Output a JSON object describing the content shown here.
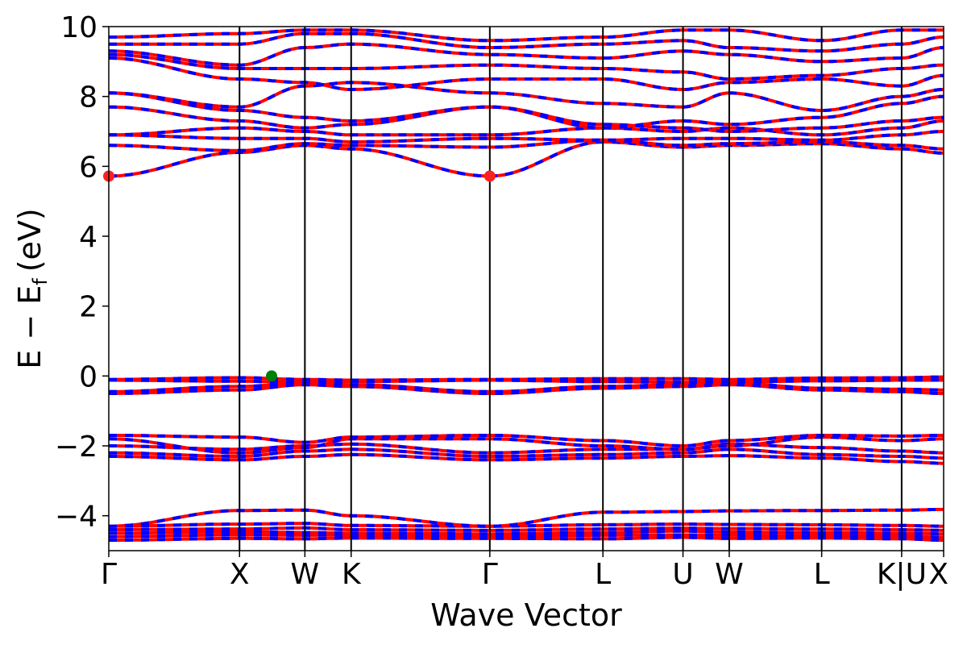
{
  "chart_data": {
    "type": "line",
    "title": "",
    "xlabel": "Wave Vector",
    "ylabel": "E − E_f (eV)",
    "ylabel_parts": {
      "main": "E − E",
      "sub": "f",
      "unit": "(eV)"
    },
    "ylim": [
      -5,
      10
    ],
    "xlim": [
      0,
      1
    ],
    "grid": false,
    "y_ticks": [
      -4,
      -2,
      0,
      2,
      4,
      6,
      8,
      10
    ],
    "y_tick_labels": [
      "−4",
      "−2",
      "0",
      "2",
      "4",
      "6",
      "8",
      "10"
    ],
    "kpoints": [
      {
        "label": "Γ",
        "x": 0.0
      },
      {
        "label": "X",
        "x": 0.1566
      },
      {
        "label": "W",
        "x": 0.2349
      },
      {
        "label": "K",
        "x": 0.2903
      },
      {
        "label": "Γ",
        "x": 0.4564
      },
      {
        "label": "L",
        "x": 0.5919
      },
      {
        "label": "U",
        "x": 0.6878
      },
      {
        "label": "W",
        "x": 0.7432
      },
      {
        "label": "L",
        "x": 0.8539
      },
      {
        "label": "K|U",
        "x": 0.9497
      },
      {
        "label": "X",
        "x": 1.0
      }
    ],
    "series_colors": {
      "spin_up": "#ff0000",
      "spin_down": "#0000ff"
    },
    "markers": [
      {
        "name": "cbm",
        "x": 0.0,
        "y": 5.72,
        "color": "#ff2020"
      },
      {
        "name": "cbm",
        "x": 0.4564,
        "y": 5.72,
        "color": "#ff2020"
      },
      {
        "name": "vbm",
        "x": 0.195,
        "y": 0.0,
        "color": "#008000"
      }
    ],
    "bands": [
      {
        "knots": [
          -4.7,
          -4.65,
          -4.66,
          -4.64,
          -4.65,
          -4.66,
          -4.62,
          -4.65,
          -4.64,
          -4.66,
          -4.7
        ]
      },
      {
        "knots": [
          -4.6,
          -4.55,
          -4.56,
          -4.55,
          -4.58,
          -4.56,
          -4.55,
          -4.56,
          -4.57,
          -4.58,
          -4.62
        ]
      },
      {
        "knots": [
          -4.5,
          -4.46,
          -4.48,
          -4.5,
          -4.52,
          -4.48,
          -4.44,
          -4.47,
          -4.48,
          -4.5,
          -4.52
        ]
      },
      {
        "knots": [
          -4.4,
          -4.38,
          -4.35,
          -4.4,
          -4.42,
          -4.38,
          -4.36,
          -4.37,
          -4.38,
          -4.4,
          -4.42
        ]
      },
      {
        "knots": [
          -4.3,
          -4.24,
          -4.22,
          -4.28,
          -4.3,
          -4.26,
          -4.24,
          -4.25,
          -4.26,
          -4.28,
          -4.3
        ]
      },
      {
        "knots": [
          -4.3,
          -3.85,
          -3.84,
          -4.0,
          -4.3,
          -3.9,
          -3.88,
          -3.86,
          -3.85,
          -3.84,
          -3.82
        ]
      },
      {
        "knots": [
          -2.3,
          -2.4,
          -2.3,
          -2.25,
          -2.4,
          -2.35,
          -2.3,
          -2.28,
          -2.35,
          -2.45,
          -2.5
        ]
      },
      {
        "knots": [
          -2.2,
          -2.3,
          -2.15,
          -2.1,
          -2.3,
          -2.25,
          -2.2,
          -2.1,
          -2.25,
          -2.3,
          -2.35
        ]
      },
      {
        "knots": [
          -2.0,
          -2.1,
          -2.0,
          -1.95,
          -2.2,
          -2.1,
          -2.1,
          -1.95,
          -2.05,
          -2.15,
          -2.2
        ]
      },
      {
        "knots": [
          -1.8,
          -2.2,
          -2.05,
          -1.8,
          -1.8,
          -2.0,
          -2.1,
          -2.0,
          -1.75,
          -1.85,
          -1.8
        ]
      },
      {
        "knots": [
          -1.7,
          -1.75,
          -1.9,
          -1.75,
          -1.7,
          -1.85,
          -2.0,
          -1.85,
          -1.7,
          -1.72,
          -1.7
        ]
      },
      {
        "knots": [
          -0.5,
          -0.4,
          -0.25,
          -0.3,
          -0.5,
          -0.35,
          -0.3,
          -0.25,
          -0.4,
          -0.45,
          -0.5
        ]
      },
      {
        "knots": [
          -0.45,
          -0.3,
          -0.2,
          -0.25,
          -0.45,
          -0.3,
          -0.25,
          -0.2,
          -0.35,
          -0.38,
          -0.4
        ]
      },
      {
        "knots": [
          -0.12,
          -0.15,
          -0.18,
          -0.16,
          -0.12,
          -0.16,
          -0.18,
          -0.17,
          -0.14,
          -0.12,
          -0.12
        ]
      },
      {
        "knots": [
          -0.1,
          -0.05,
          -0.1,
          -0.12,
          -0.1,
          -0.08,
          -0.08,
          -0.1,
          -0.06,
          -0.05,
          -0.03
        ]
      },
      {
        "knots": [
          5.72,
          6.4,
          6.6,
          6.5,
          5.72,
          6.7,
          6.55,
          6.6,
          6.65,
          6.5,
          6.38
        ]
      },
      {
        "knots": [
          6.6,
          6.45,
          6.65,
          6.6,
          6.55,
          6.75,
          6.6,
          6.65,
          6.7,
          6.6,
          6.5
        ]
      },
      {
        "knots": [
          6.9,
          6.8,
          6.8,
          6.7,
          6.8,
          6.75,
          6.8,
          6.8,
          6.75,
          6.9,
          7.0
        ]
      },
      {
        "knots": [
          6.9,
          7.1,
          7.0,
          6.9,
          6.9,
          7.1,
          7.0,
          7.1,
          6.9,
          7.1,
          7.3
        ]
      },
      {
        "knots": [
          7.7,
          7.3,
          7.1,
          7.2,
          7.7,
          7.2,
          7.1,
          7.0,
          7.1,
          7.3,
          7.4
        ]
      },
      {
        "knots": [
          8.1,
          7.6,
          7.4,
          7.3,
          7.7,
          7.1,
          7.3,
          7.2,
          7.4,
          7.8,
          8.0
        ]
      },
      {
        "knots": [
          8.1,
          7.7,
          8.3,
          8.4,
          8.1,
          7.8,
          7.7,
          8.1,
          7.6,
          8.0,
          8.2
        ]
      },
      {
        "knots": [
          9.1,
          8.5,
          8.4,
          8.2,
          8.5,
          8.5,
          8.2,
          8.4,
          8.5,
          8.3,
          8.6
        ]
      },
      {
        "knots": [
          9.2,
          8.8,
          8.8,
          8.8,
          8.9,
          8.8,
          8.7,
          8.5,
          8.6,
          8.8,
          8.9
        ]
      },
      {
        "knots": [
          9.3,
          8.9,
          9.4,
          9.5,
          9.2,
          9.1,
          9.3,
          9.2,
          9.0,
          9.1,
          9.4
        ]
      },
      {
        "knots": [
          9.5,
          9.5,
          9.8,
          9.8,
          9.4,
          9.5,
          9.6,
          9.4,
          9.3,
          9.5,
          9.7
        ]
      },
      {
        "knots": [
          9.7,
          9.8,
          9.9,
          9.9,
          9.6,
          9.7,
          9.9,
          9.9,
          9.6,
          9.9,
          9.9
        ]
      }
    ]
  }
}
